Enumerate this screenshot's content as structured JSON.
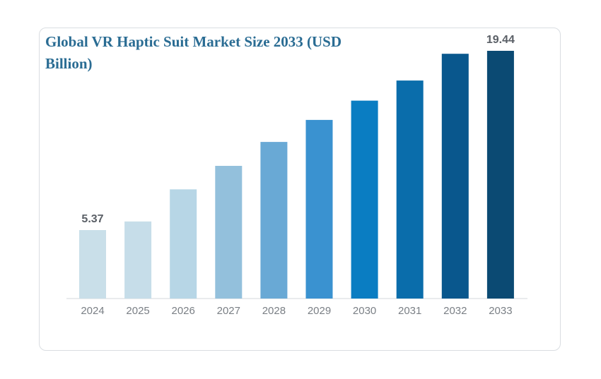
{
  "chart_data": {
    "type": "bar",
    "title": "Global VR Haptic Suit Market Size 2033 (USD Billion)",
    "categories": [
      "2024",
      "2025",
      "2026",
      "2027",
      "2028",
      "2029",
      "2030",
      "2031",
      "2032",
      "2033"
    ],
    "values": [
      5.37,
      6.05,
      8.57,
      10.41,
      12.29,
      14.02,
      15.53,
      17.11,
      19.21,
      19.44
    ],
    "data_labels": [
      {
        "index": 0,
        "text": "5.37"
      },
      {
        "index": 9,
        "text": "19.44"
      }
    ],
    "bar_colors": [
      "#c9dfe9",
      "#c6dde9",
      "#b7d6e6",
      "#93c0dc",
      "#69a9d5",
      "#3a92d0",
      "#0a7dc2",
      "#0a6dab",
      "#09578d",
      "#0b4a73"
    ],
    "xlabel": "",
    "ylabel": "",
    "ylim": [
      0,
      20
    ],
    "grid": false,
    "legend": "none"
  }
}
